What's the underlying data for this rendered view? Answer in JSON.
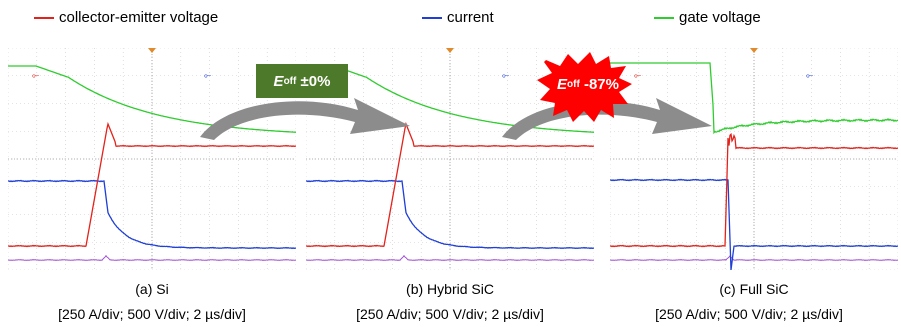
{
  "legend": [
    {
      "label": "collector-emitter voltage",
      "color": "#e3221b"
    },
    {
      "label": "current",
      "color": "#1f3fd6"
    },
    {
      "label": "gate voltage",
      "color": "#2ecc2e"
    }
  ],
  "annotations": [
    {
      "symbol": "E",
      "subscript": "off",
      "value": "±0%",
      "shape": "rectangle",
      "fill": "#4d7a2a"
    },
    {
      "symbol": "E",
      "subscript": "off",
      "value": "-87%",
      "shape": "starburst",
      "fill": "#ff0000"
    }
  ],
  "colors": {
    "vce": "#e3221b",
    "current": "#1f3fd6",
    "gate": "#2ecc2e",
    "aux": "#a050d0",
    "arrow": "#8c8c8c",
    "grid": "#c8c8c8"
  },
  "chart_data": [
    {
      "type": "line",
      "title": "(a) Si",
      "scale": "[250 A/div; 500 V/div; 2 µs/div]",
      "switching": "slow",
      "series": [
        {
          "name": "collector-emitter voltage"
        },
        {
          "name": "current"
        },
        {
          "name": "gate voltage"
        }
      ]
    },
    {
      "type": "line",
      "title": "(b) Hybrid SiC",
      "scale": "[250 A/div; 500 V/div; 2 µs/div]",
      "switching": "slow",
      "series": [
        {
          "name": "collector-emitter voltage"
        },
        {
          "name": "current"
        },
        {
          "name": "gate voltage"
        }
      ]
    },
    {
      "type": "line",
      "title": "(c) Full SiC",
      "scale": "[250 A/div; 500 V/div; 2 µs/div]",
      "switching": "fast",
      "series": [
        {
          "name": "collector-emitter voltage"
        },
        {
          "name": "current"
        },
        {
          "name": "gate voltage"
        }
      ]
    }
  ]
}
